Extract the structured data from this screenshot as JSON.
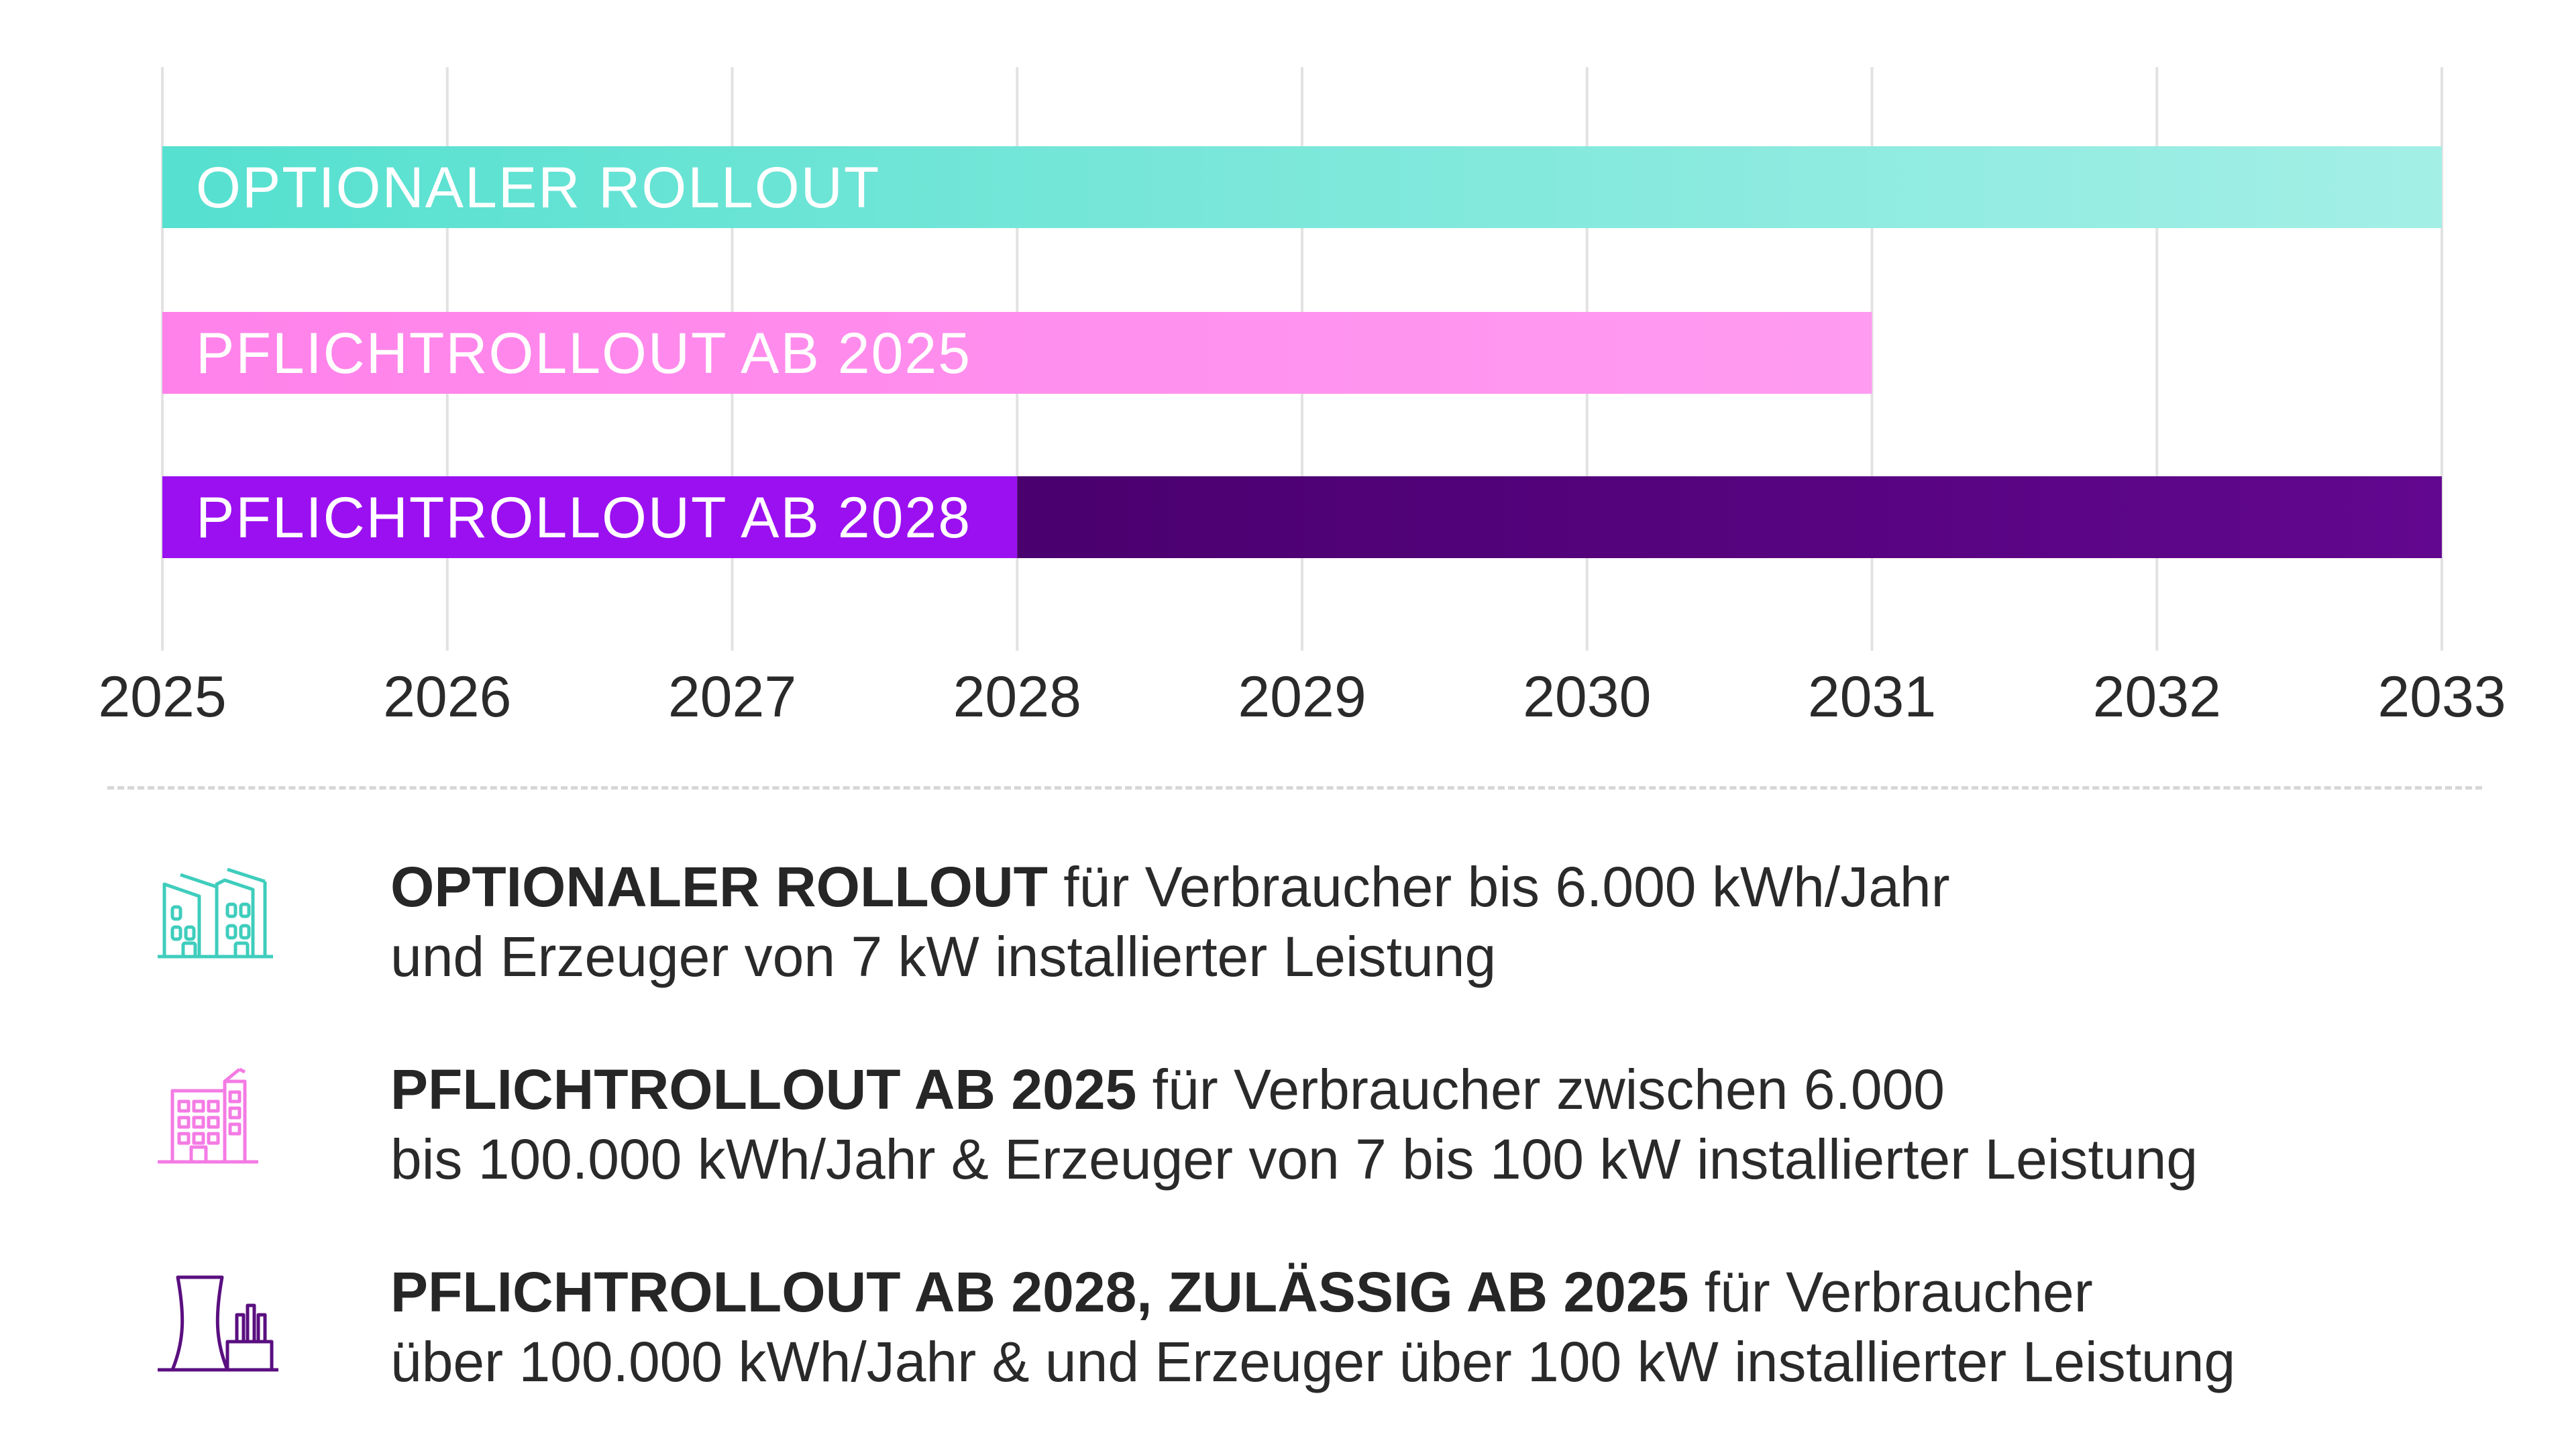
{
  "chart_data": {
    "type": "bar",
    "orientation": "horizontal",
    "title": "",
    "xlabel": "",
    "ylabel": "",
    "xlim": [
      2025,
      2033
    ],
    "x_ticks": [
      "2025",
      "2026",
      "2027",
      "2028",
      "2029",
      "2030",
      "2031",
      "2032",
      "2033"
    ],
    "grid": "vertical",
    "series": [
      {
        "label": "OPTIONALER ROLLOUT",
        "start": 2025,
        "end": 2033,
        "color_start": "#55e0cf",
        "color_end": "#a3efe6"
      },
      {
        "label": "PFLICHTROLLOUT AB 2025",
        "start": 2025,
        "end": 2031,
        "color_start": "#ff82ea",
        "color_end": "#ff9bf1"
      },
      {
        "label": "PFLICHTROLLOUT AB 2028",
        "start": 2025,
        "end": 2033,
        "segments": [
          {
            "start": 2025,
            "end": 2028,
            "color": "#9b10f0"
          },
          {
            "start": 2028,
            "end": 2033,
            "color_start": "#4a006e",
            "color_end": "#62078f"
          }
        ]
      }
    ]
  },
  "colors": {
    "teal": "#3fcdbd",
    "pink": "#f47be4",
    "purple": "#5a0f80",
    "grid": "#e2e2e2"
  },
  "legend": [
    {
      "icon": "houses-icon",
      "bold": "OPTIONALER ROLLOUT",
      "line1_rest": " für Verbraucher bis 6.000 kWh/Jahr",
      "line2": "und Erzeuger von 7 kW installierter Leistung"
    },
    {
      "icon": "apartment-building-icon",
      "bold": "PFLICHTROLLOUT AB 2025",
      "line1_rest": " für Verbraucher zwischen 6.000",
      "line2": "bis 100.000 kWh/Jahr & Erzeuger von 7 bis 100 kW installierter Leistung"
    },
    {
      "icon": "power-plant-icon",
      "bold": "PFLICHTROLLOUT AB 2028, ZULÄSSIG AB 2025",
      "line1_rest": " für Verbraucher",
      "line2": "über 100.000 kWh/Jahr & und Erzeuger über 100 kW installierter Leistung"
    }
  ]
}
